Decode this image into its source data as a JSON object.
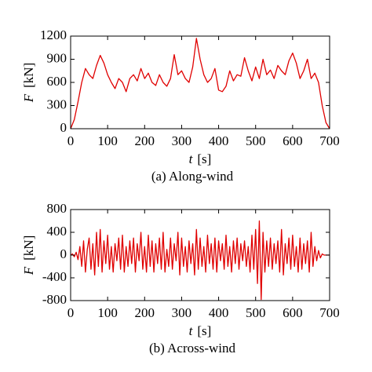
{
  "chart_data": [
    {
      "type": "line",
      "xlabel": {
        "symbol": "t",
        "unit": "[s]"
      },
      "ylabel": {
        "symbol": "F",
        "unit": "[kN]"
      },
      "caption": "(a) Along-wind",
      "xlim": [
        0,
        700
      ],
      "xticks": [
        0,
        100,
        200,
        300,
        400,
        500,
        600,
        700
      ],
      "ylim": [
        0,
        1200
      ],
      "yticks": [
        0,
        300,
        600,
        900,
        1200
      ],
      "x": [
        0,
        10,
        20,
        30,
        40,
        50,
        60,
        70,
        80,
        90,
        100,
        110,
        120,
        130,
        140,
        150,
        160,
        170,
        180,
        190,
        200,
        210,
        220,
        230,
        240,
        250,
        260,
        270,
        280,
        290,
        300,
        310,
        320,
        330,
        340,
        350,
        360,
        370,
        380,
        390,
        400,
        410,
        420,
        430,
        440,
        450,
        460,
        470,
        480,
        490,
        500,
        510,
        520,
        530,
        540,
        550,
        560,
        570,
        580,
        590,
        600,
        610,
        620,
        630,
        640,
        650,
        660,
        670,
        680,
        690,
        700
      ],
      "series": [
        {
          "color": "#e00000",
          "values": [
            0,
            120,
            350,
            600,
            780,
            700,
            650,
            820,
            950,
            850,
            700,
            600,
            520,
            650,
            600,
            480,
            650,
            700,
            620,
            780,
            650,
            720,
            600,
            560,
            700,
            600,
            550,
            650,
            960,
            700,
            750,
            650,
            600,
            800,
            1170,
            900,
            700,
            600,
            650,
            780,
            500,
            480,
            550,
            750,
            620,
            700,
            680,
            920,
            750,
            620,
            800,
            650,
            900,
            700,
            760,
            650,
            820,
            750,
            700,
            880,
            980,
            850,
            650,
            750,
            900,
            650,
            720,
            600,
            300,
            80,
            0
          ]
        }
      ]
    },
    {
      "type": "line",
      "xlabel": {
        "symbol": "t",
        "unit": "[s]"
      },
      "ylabel": {
        "symbol": "F",
        "unit": "[kN]"
      },
      "caption": "(b) Across-wind",
      "xlim": [
        0,
        700
      ],
      "xticks": [
        0,
        100,
        200,
        300,
        400,
        500,
        600,
        700
      ],
      "ylim": [
        -800,
        800
      ],
      "yticks": [
        -800,
        -400,
        0,
        400,
        800
      ],
      "x": [
        0,
        5,
        10,
        15,
        20,
        25,
        30,
        35,
        40,
        45,
        50,
        55,
        60,
        65,
        70,
        75,
        80,
        85,
        90,
        95,
        100,
        105,
        110,
        115,
        120,
        125,
        130,
        135,
        140,
        145,
        150,
        155,
        160,
        165,
        170,
        175,
        180,
        185,
        190,
        195,
        200,
        205,
        210,
        215,
        220,
        225,
        230,
        235,
        240,
        245,
        250,
        255,
        260,
        265,
        270,
        275,
        280,
        285,
        290,
        295,
        300,
        305,
        310,
        315,
        320,
        325,
        330,
        335,
        340,
        345,
        350,
        355,
        360,
        365,
        370,
        375,
        380,
        385,
        390,
        395,
        400,
        405,
        410,
        415,
        420,
        425,
        430,
        435,
        440,
        445,
        450,
        455,
        460,
        465,
        470,
        475,
        480,
        485,
        490,
        495,
        500,
        505,
        510,
        515,
        520,
        525,
        530,
        535,
        540,
        545,
        550,
        555,
        560,
        565,
        570,
        575,
        580,
        585,
        590,
        595,
        600,
        605,
        610,
        615,
        620,
        625,
        630,
        635,
        640,
        645,
        650,
        655,
        660,
        665,
        670,
        675,
        680,
        685,
        690,
        695,
        700
      ],
      "series": [
        {
          "color": "#e00000",
          "values": [
            0,
            20,
            -30,
            50,
            -80,
            150,
            -200,
            250,
            -300,
            100,
            300,
            -250,
            200,
            -350,
            400,
            -200,
            450,
            -300,
            250,
            -150,
            350,
            -250,
            150,
            -300,
            200,
            -100,
            300,
            -250,
            350,
            -300,
            150,
            -200,
            250,
            -150,
            300,
            -300,
            200,
            -100,
            400,
            -250,
            150,
            -300,
            350,
            -200,
            250,
            -300,
            200,
            -150,
            300,
            -250,
            400,
            -300,
            100,
            -200,
            300,
            -250,
            200,
            -100,
            400,
            -350,
            300,
            -200,
            150,
            -300,
            250,
            -150,
            200,
            -350,
            450,
            -250,
            300,
            -200,
            150,
            -300,
            350,
            -150,
            200,
            -250,
            300,
            -300,
            250,
            -100,
            200,
            -250,
            350,
            -200,
            150,
            -300,
            250,
            -150,
            300,
            -250,
            200,
            -100,
            250,
            -200,
            150,
            -300,
            350,
            -250,
            450,
            -500,
            600,
            -780,
            400,
            -300,
            250,
            -200,
            300,
            -250,
            200,
            -150,
            250,
            -300,
            450,
            -350,
            200,
            -150,
            300,
            -250,
            350,
            -200,
            150,
            -300,
            300,
            -250,
            200,
            -150,
            250,
            -300,
            400,
            -200,
            150,
            -100,
            80,
            -50,
            20,
            0,
            0,
            0,
            0
          ]
        }
      ]
    }
  ]
}
